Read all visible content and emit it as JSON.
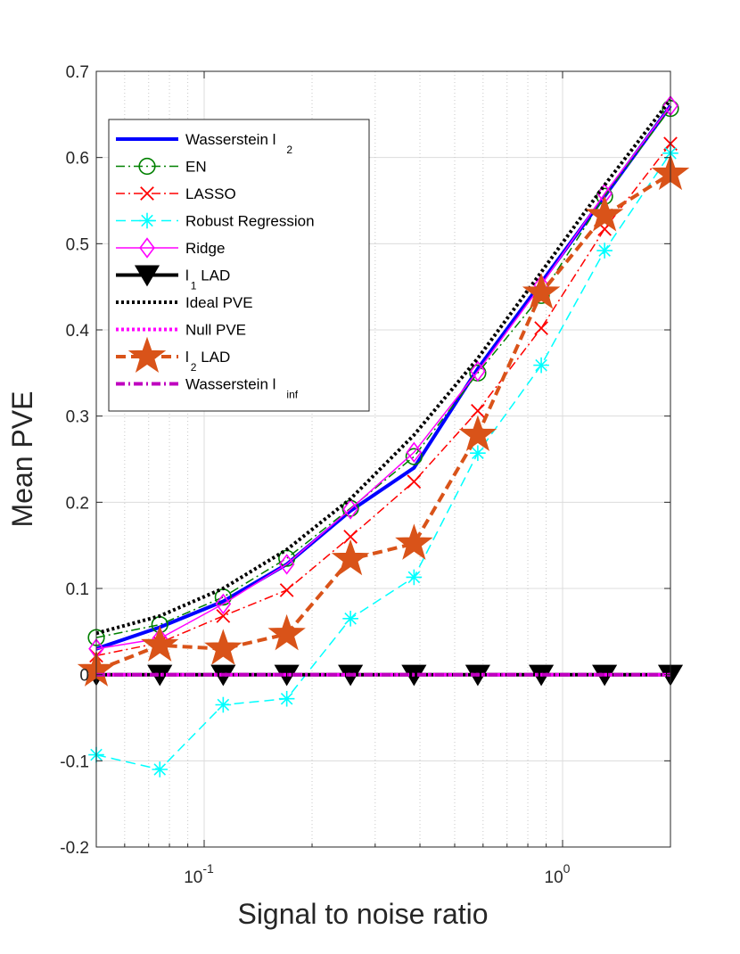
{
  "chart_data": {
    "type": "line",
    "title": "",
    "xlabel": "Signal to noise ratio",
    "ylabel": "Mean PVE",
    "xscale": "log",
    "xlim": [
      0.05,
      2.0
    ],
    "ylim": [
      -0.2,
      0.7
    ],
    "grid": true,
    "legend_position": "top-left",
    "x": [
      0.05,
      0.0752,
      0.113,
      0.17,
      0.256,
      0.385,
      0.58,
      0.872,
      1.31,
      2.0
    ],
    "y_ticks": [
      {
        "value": -0.2,
        "label": "-0.2"
      },
      {
        "value": -0.1,
        "label": "-0.1"
      },
      {
        "value": 0,
        "label": "0"
      },
      {
        "value": 0.1,
        "label": "0.1"
      },
      {
        "value": 0.2,
        "label": "0.2"
      },
      {
        "value": 0.3,
        "label": "0.3"
      },
      {
        "value": 0.4,
        "label": "0.4"
      },
      {
        "value": 0.5,
        "label": "0.5"
      },
      {
        "value": 0.6,
        "label": "0.6"
      },
      {
        "value": 0.7,
        "label": "0.7"
      }
    ],
    "x_ticks": [
      {
        "value": 0.1,
        "base": "10",
        "exp": "-1"
      },
      {
        "value": 1,
        "base": "10",
        "exp": "0"
      }
    ],
    "series": [
      {
        "name": "Wasserstein l",
        "sub": "2",
        "color": "#0000ff",
        "style": "solid",
        "marker": "none",
        "values": [
          0.03,
          0.055,
          0.085,
          0.128,
          0.19,
          0.24,
          0.355,
          0.455,
          0.555,
          0.66
        ]
      },
      {
        "name": "EN",
        "sub": "",
        "color": "#008000",
        "style": "dashdot",
        "marker": "circle",
        "values": [
          0.043,
          0.058,
          0.09,
          0.135,
          0.193,
          0.253,
          0.35,
          0.44,
          0.555,
          0.657
        ]
      },
      {
        "name": "LASSO",
        "sub": "",
        "color": "#ff0000",
        "style": "dashdot",
        "marker": "x",
        "values": [
          0.022,
          0.037,
          0.068,
          0.098,
          0.16,
          0.224,
          0.306,
          0.402,
          0.517,
          0.616
        ]
      },
      {
        "name": "Robust Regression",
        "sub": "",
        "color": "#00ffff",
        "style": "dashed",
        "marker": "asterisk",
        "values": [
          -0.093,
          -0.11,
          -0.035,
          -0.028,
          0.065,
          0.113,
          0.257,
          0.359,
          0.492,
          0.605
        ]
      },
      {
        "name": "Ridge",
        "sub": "",
        "color": "#ff00ff",
        "style": "solid",
        "marker": "diamond",
        "values": [
          0.03,
          0.042,
          0.082,
          0.128,
          0.192,
          0.258,
          0.352,
          0.452,
          0.558,
          0.66
        ]
      },
      {
        "name": "l",
        "sub": "1",
        "suffix": " LAD",
        "color": "#000000",
        "style": "solid",
        "marker": "triangle-down",
        "values": [
          0,
          0,
          0,
          0,
          0,
          0,
          0,
          0,
          0,
          0
        ]
      },
      {
        "name": "Ideal PVE",
        "sub": "",
        "color": "#000000",
        "style": "dotted",
        "marker": "none",
        "values": [
          0.048,
          0.068,
          0.1,
          0.145,
          0.204,
          0.278,
          0.367,
          0.467,
          0.568,
          0.667
        ]
      },
      {
        "name": "Null PVE",
        "sub": "",
        "color": "#ff00ff",
        "style": "dotted",
        "marker": "none",
        "values": [
          0,
          0,
          0,
          0,
          0,
          0,
          0,
          0,
          0,
          0
        ]
      },
      {
        "name": "l",
        "sub": "2",
        "suffix": " LAD",
        "color": "#d95319",
        "style": "dashed",
        "marker": "star",
        "values": [
          0.005,
          0.034,
          0.03,
          0.047,
          0.134,
          0.152,
          0.278,
          0.443,
          0.533,
          0.581
        ]
      },
      {
        "name": "Wasserstein l",
        "sub": "inf",
        "color": "#bf00bf",
        "style": "dashdot",
        "marker": "none",
        "values": [
          0,
          0,
          0,
          0,
          0,
          0,
          0,
          0,
          0,
          0
        ]
      }
    ]
  }
}
